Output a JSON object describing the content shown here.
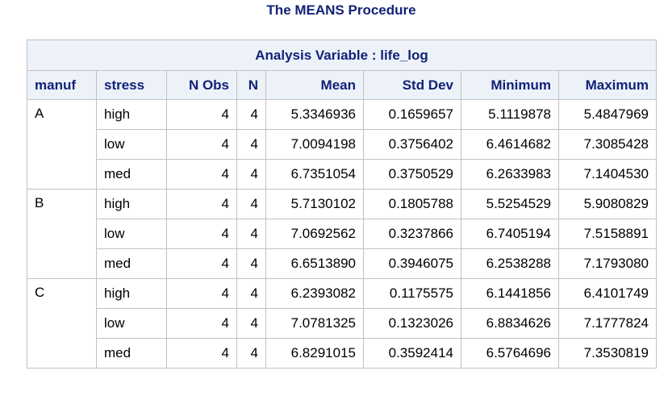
{
  "title": "The MEANS Procedure",
  "caption": "Analysis Variable : life_log",
  "columns": [
    "manuf",
    "stress",
    "N Obs",
    "N",
    "Mean",
    "Std Dev",
    "Minimum",
    "Maximum"
  ],
  "rows": [
    {
      "manuf": "A",
      "stress": "high",
      "nobs": "4",
      "n": "4",
      "mean": "5.3346936",
      "std": "0.1659657",
      "min": "5.1119878",
      "max": "5.4847969"
    },
    {
      "manuf": "",
      "stress": "low",
      "nobs": "4",
      "n": "4",
      "mean": "7.0094198",
      "std": "0.3756402",
      "min": "6.4614682",
      "max": "7.3085428"
    },
    {
      "manuf": "",
      "stress": "med",
      "nobs": "4",
      "n": "4",
      "mean": "6.7351054",
      "std": "0.3750529",
      "min": "6.2633983",
      "max": "7.1404530"
    },
    {
      "manuf": "B",
      "stress": "high",
      "nobs": "4",
      "n": "4",
      "mean": "5.7130102",
      "std": "0.1805788",
      "min": "5.5254529",
      "max": "5.9080829"
    },
    {
      "manuf": "",
      "stress": "low",
      "nobs": "4",
      "n": "4",
      "mean": "7.0692562",
      "std": "0.3237866",
      "min": "6.7405194",
      "max": "7.5158891"
    },
    {
      "manuf": "",
      "stress": "med",
      "nobs": "4",
      "n": "4",
      "mean": "6.6513890",
      "std": "0.3946075",
      "min": "6.2538288",
      "max": "7.1793080"
    },
    {
      "manuf": "C",
      "stress": "high",
      "nobs": "4",
      "n": "4",
      "mean": "6.2393082",
      "std": "0.1175575",
      "min": "6.1441856",
      "max": "6.4101749"
    },
    {
      "manuf": "",
      "stress": "low",
      "nobs": "4",
      "n": "4",
      "mean": "7.0781325",
      "std": "0.1323026",
      "min": "6.8834626",
      "max": "7.1777824"
    },
    {
      "manuf": "",
      "stress": "med",
      "nobs": "4",
      "n": "4",
      "mean": "6.8291015",
      "std": "0.3592414",
      "min": "6.5764696",
      "max": "7.3530819"
    }
  ],
  "colors": {
    "header_bg": "#edf2f9",
    "header_text": "#112277",
    "border": "#c1c1c1"
  }
}
